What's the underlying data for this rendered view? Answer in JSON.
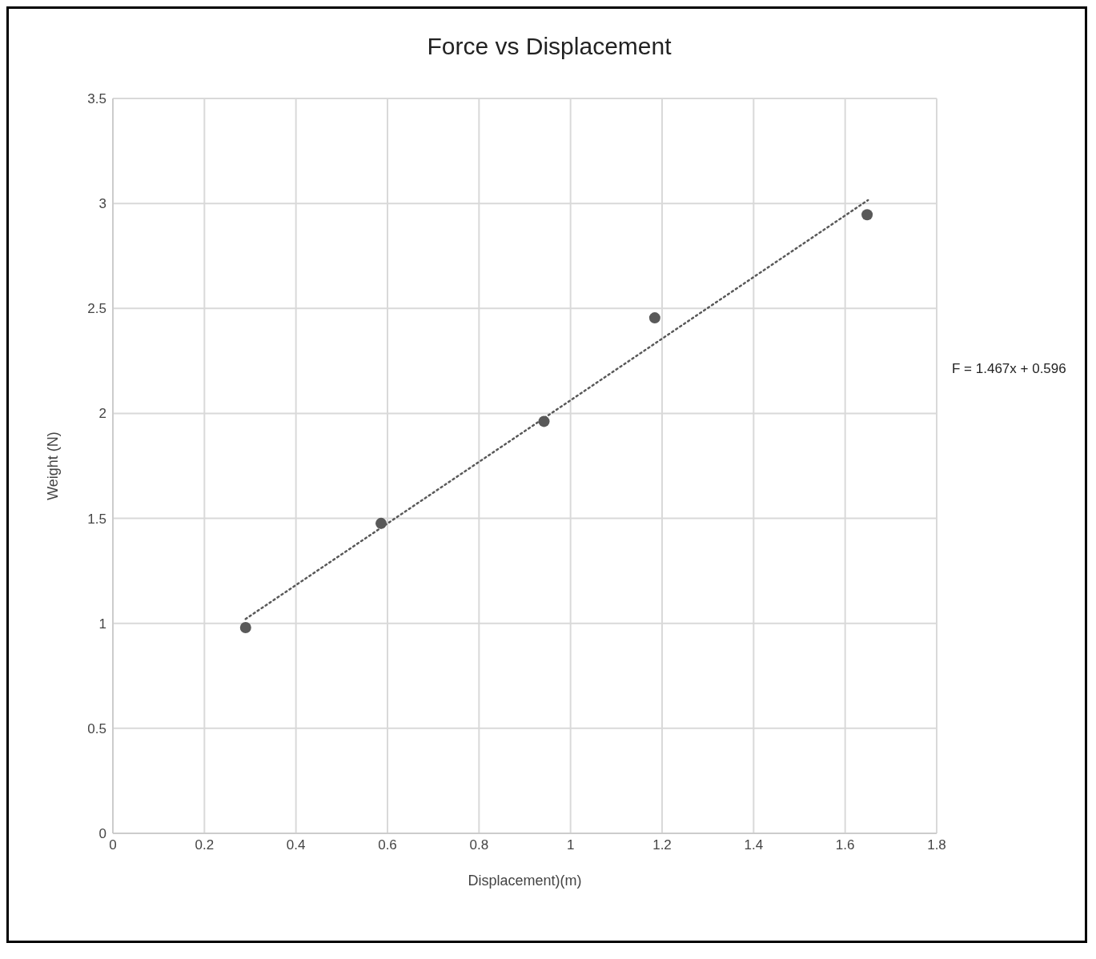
{
  "chart_data": {
    "type": "scatter",
    "title": "Force vs Displacement",
    "xlabel": "Displacement)(m)",
    "ylabel": "Weight (N)",
    "series": [
      {
        "color": "#595959",
        "x": [
          0.29,
          0.586,
          0.942,
          1.184,
          1.648
        ],
        "values": [
          0.98,
          1.476,
          1.962,
          2.455,
          2.946
        ],
        "marker": "circle"
      },
      {
        "type": "line",
        "color": "#595959",
        "x": [
          0.29,
          1.65
        ],
        "values": [
          1.021,
          3.016
        ],
        "line_style": "dotted",
        "marker": "none"
      }
    ],
    "annotations": [
      "F = 1.467x + 0.596"
    ],
    "xlim": [
      0,
      1.8
    ],
    "xticks": [
      0,
      0.2,
      0.4,
      0.6,
      0.8,
      1,
      1.2,
      1.4,
      1.6,
      1.8
    ],
    "ylim": [
      0,
      3.5
    ],
    "yticks": [
      0,
      0.5,
      1,
      1.5,
      2,
      2.5,
      3,
      3.5
    ],
    "grid": true,
    "legend": false
  }
}
